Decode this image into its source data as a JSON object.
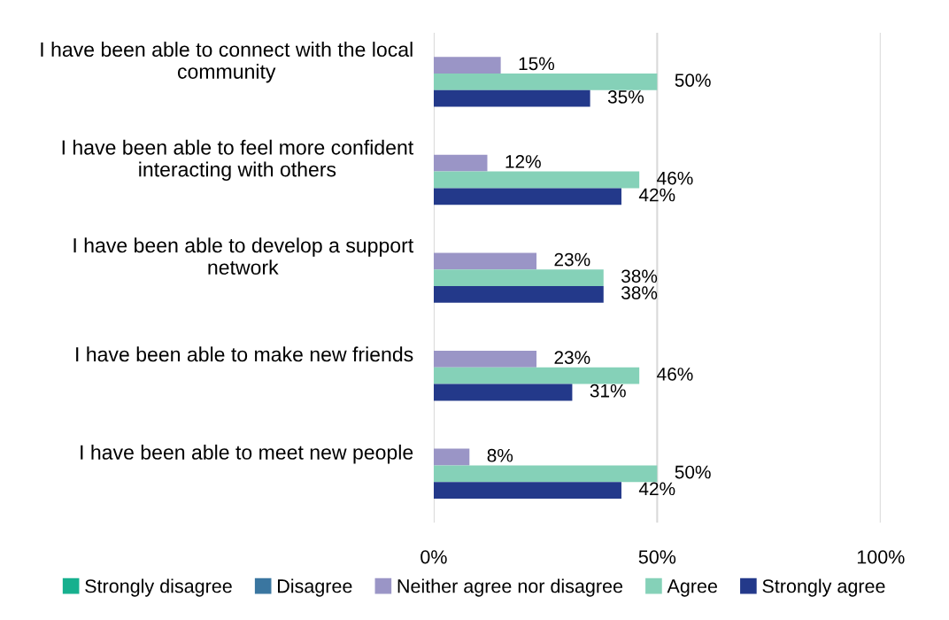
{
  "chart_data": {
    "type": "bar",
    "orientation": "horizontal",
    "categories": [
      "I have been able to connect with the local community",
      "I have been able to feel more confident interacting with others",
      "I have been able to develop a support network",
      "I have been able to make new friends",
      "I have been able to meet new people"
    ],
    "series": [
      {
        "name": "Strongly disagree",
        "color": "#16b08e",
        "values": [
          null,
          null,
          null,
          null,
          null
        ]
      },
      {
        "name": "Disagree",
        "color": "#3a76a0",
        "values": [
          null,
          null,
          null,
          null,
          null
        ]
      },
      {
        "name": "Neither agree nor disagree",
        "color": "#9a95c6",
        "values": [
          15,
          12,
          23,
          23,
          8
        ],
        "value_labels": [
          "15%",
          "12%",
          "23%",
          "23%",
          "8%"
        ]
      },
      {
        "name": "Agree",
        "color": "#85d1b8",
        "values": [
          50,
          46,
          38,
          46,
          50
        ],
        "value_labels": [
          "50%",
          "46%",
          "38%",
          "46%",
          "50%"
        ]
      },
      {
        "name": "Strongly agree",
        "color": "#23398a",
        "values": [
          35,
          42,
          38,
          31,
          42
        ],
        "value_labels": [
          "35%",
          "42%",
          "38%",
          "31%",
          "42%"
        ]
      }
    ],
    "xlim": [
      0,
      100
    ],
    "xticks": [
      {
        "value": 0,
        "label": "0%"
      },
      {
        "value": 50,
        "label": "50%"
      },
      {
        "value": 100,
        "label": "100%"
      }
    ],
    "grid": "x",
    "legend": "bottom"
  }
}
